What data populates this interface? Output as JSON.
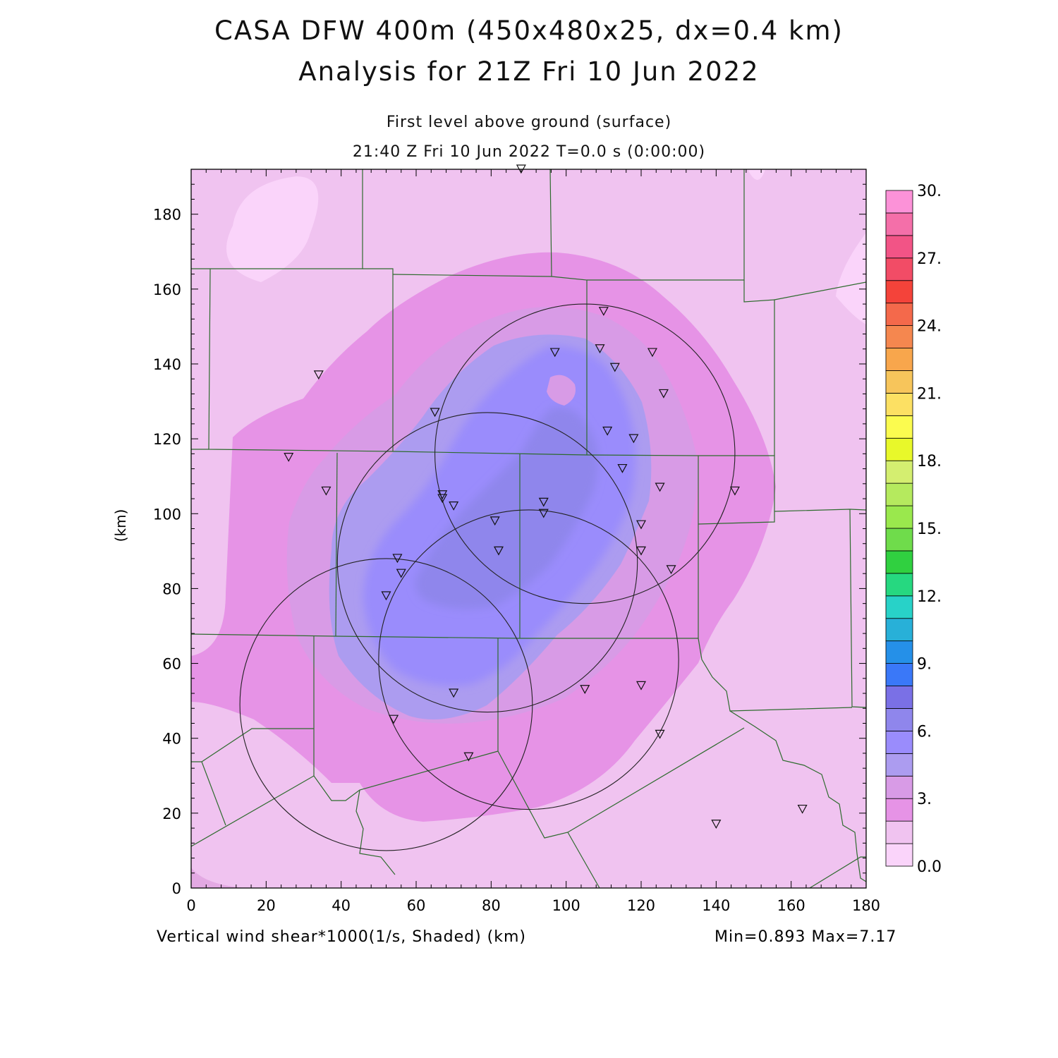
{
  "header": {
    "title_line1": "CASA DFW 400m (450x480x25, dx=0.4 km)",
    "title_line2": "Analysis for 21Z Fri 10 Jun 2022",
    "subtitle_level": "First level above ground (surface)",
    "subtitle_time": "21:40 Z Fri 10 Jun 2022   T=0.0 s (0:00:00)"
  },
  "footer": {
    "field_label": "Vertical wind shear*1000(1/s, Shaded)  (km)",
    "minmax": "Min=0.893 Max=7.17"
  },
  "chart_data": {
    "type": "heatmap",
    "title": "CASA DFW 400m (450x480x25, dx=0.4 km)",
    "ylabel": "(km)",
    "xlabel": "(km)",
    "xlim": [
      0,
      180
    ],
    "ylim": [
      0,
      192
    ],
    "x_ticks": [
      0,
      20,
      40,
      60,
      80,
      100,
      120,
      140,
      160,
      180
    ],
    "y_ticks": [
      0,
      20,
      40,
      60,
      80,
      100,
      120,
      140,
      160,
      180
    ],
    "field": "Vertical wind shear*1000 (1/s)",
    "min": 0.893,
    "max": 7.17,
    "colorbar": {
      "labels": [
        "0.0",
        "3.",
        "6.",
        "9.",
        "12.",
        "15.",
        "18.",
        "21.",
        "24.",
        "27.",
        "30."
      ],
      "levels": [
        0,
        1.5,
        3,
        4.5,
        6,
        7.5,
        9,
        10.5,
        12,
        13.5,
        15,
        16.5,
        18,
        19.5,
        21,
        22.5,
        24,
        25.5,
        27,
        28.5,
        30
      ],
      "colors": [
        "#fad4fa",
        "#f0c3f0",
        "#e693e6",
        "#d89be6",
        "#ac9cf0",
        "#9a8cfc",
        "#8f86ec",
        "#7a70e6",
        "#3a78f8",
        "#2590e8",
        "#28b0d8",
        "#28d2c8",
        "#26d880",
        "#30d040",
        "#6fdc4b",
        "#9ae84d",
        "#b5ea5e",
        "#d4ee70",
        "#e8f82a",
        "#fbfb4f",
        "#fce063",
        "#f7c55b",
        "#f8a64c",
        "#f5874f",
        "#f4694b",
        "#f4433a",
        "#f24c66",
        "#f25486",
        "#f46fa9",
        "#fc92d8"
      ]
    },
    "radar_circles": [
      {
        "cx": 52,
        "cy": 49,
        "r": 39
      },
      {
        "cx": 79,
        "cy": 87,
        "r": 40
      },
      {
        "cx": 90,
        "cy": 61,
        "r": 40
      },
      {
        "cx": 105,
        "cy": 116,
        "r": 40
      }
    ],
    "stations": [
      [
        88,
        192
      ],
      [
        110,
        154
      ],
      [
        109,
        144
      ],
      [
        123,
        143
      ],
      [
        97,
        143
      ],
      [
        113,
        139
      ],
      [
        34,
        137
      ],
      [
        126,
        132
      ],
      [
        65,
        127
      ],
      [
        111,
        122
      ],
      [
        118,
        120
      ],
      [
        26,
        115
      ],
      [
        115,
        112
      ],
      [
        125,
        107
      ],
      [
        145,
        106
      ],
      [
        36,
        106
      ],
      [
        67,
        105
      ],
      [
        67,
        104
      ],
      [
        70,
        102
      ],
      [
        94,
        103
      ],
      [
        94,
        100
      ],
      [
        81,
        98
      ],
      [
        120,
        97
      ],
      [
        82,
        90
      ],
      [
        120,
        90
      ],
      [
        55,
        88
      ],
      [
        128,
        85
      ],
      [
        56,
        84
      ],
      [
        52,
        78
      ],
      [
        120,
        54
      ],
      [
        105,
        53
      ],
      [
        70,
        52
      ],
      [
        54,
        45
      ],
      [
        125,
        41
      ],
      [
        74,
        35
      ],
      [
        163,
        21
      ],
      [
        140,
        17
      ]
    ]
  }
}
